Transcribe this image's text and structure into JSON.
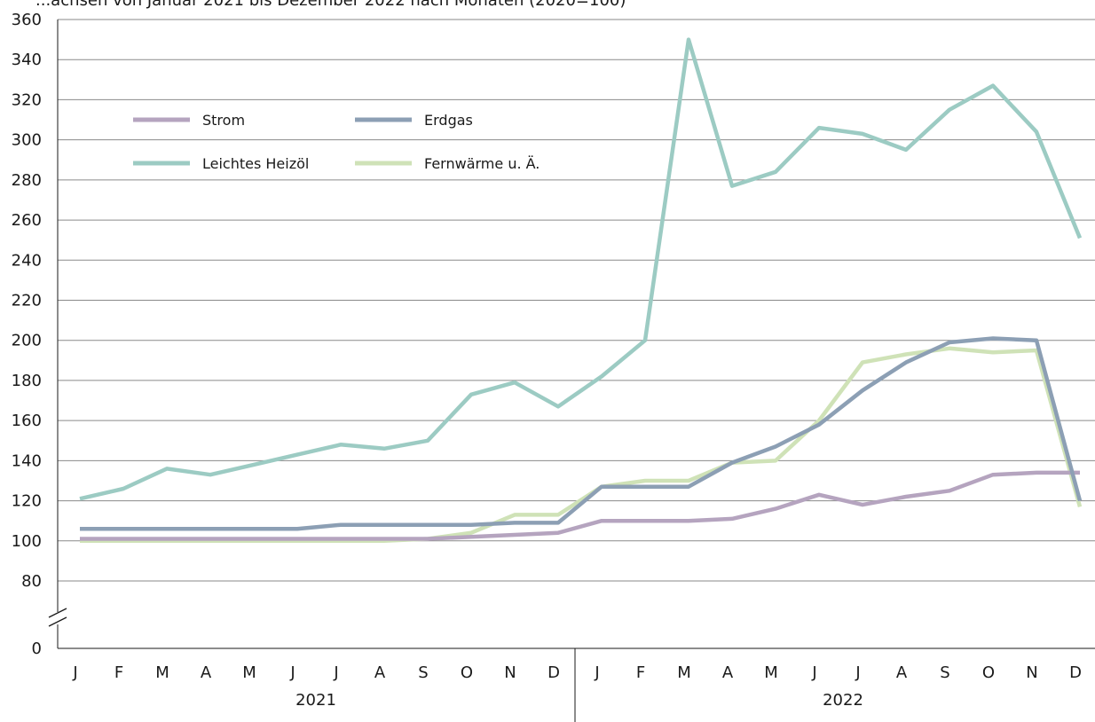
{
  "chart_data": {
    "type": "line",
    "title": "...achsen von Januar 2021 bis Dezember 2022 nach Monaten (2020=100)",
    "xlabel": "",
    "ylabel": "",
    "ylim": [
      0,
      360
    ],
    "axis_break": [
      0,
      80
    ],
    "y_ticks": [
      0,
      80,
      100,
      120,
      140,
      160,
      180,
      200,
      220,
      240,
      260,
      280,
      300,
      320,
      340,
      360
    ],
    "grid": true,
    "legend_position": "top-left",
    "months": [
      "J",
      "F",
      "M",
      "A",
      "M",
      "J",
      "J",
      "A",
      "S",
      "O",
      "N",
      "D",
      "J",
      "F",
      "M",
      "A",
      "M",
      "J",
      "J",
      "A",
      "S",
      "O",
      "N",
      "D"
    ],
    "years": [
      "2021",
      "2022"
    ],
    "series": [
      {
        "name": "Strom",
        "color": "#b5a4bf",
        "values": [
          101,
          101,
          101,
          101,
          101,
          101,
          101,
          101,
          101,
          102,
          103,
          104,
          110,
          110,
          110,
          111,
          116,
          123,
          118,
          122,
          125,
          133,
          134,
          134
        ]
      },
      {
        "name": "Erdgas",
        "color": "#8c9fb4",
        "values": [
          106,
          106,
          106,
          106,
          106,
          106,
          108,
          108,
          108,
          108,
          109,
          109,
          127,
          127,
          127,
          139,
          147,
          158,
          175,
          189,
          199,
          201,
          200,
          120
        ]
      },
      {
        "name": "Leichtes Heizöl",
        "color": "#9ccbc3",
        "values": [
          121,
          126,
          136,
          133,
          138,
          143,
          148,
          146,
          150,
          173,
          179,
          167,
          182,
          200,
          350,
          277,
          284,
          306,
          303,
          295,
          315,
          327,
          304,
          251
        ]
      },
      {
        "name": "Fernwärme u. Ä.",
        "color": "#cfe2b7",
        "values": [
          100,
          100,
          100,
          100,
          100,
          100,
          100,
          100,
          101,
          104,
          113,
          113,
          127,
          130,
          130,
          139,
          140,
          160,
          189,
          193,
          196,
          194,
          195,
          117
        ]
      }
    ]
  }
}
